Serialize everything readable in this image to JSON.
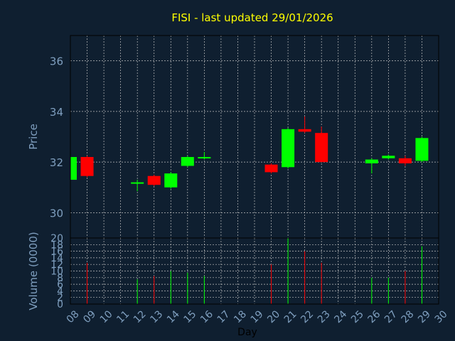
{
  "title": "FISI - last updated 29/01/2026",
  "colors": {
    "background": "#0f1f30",
    "title": "#ffff00",
    "axis_text": "#7f9fbf",
    "grid": "#bfbfbf",
    "frame": "#000000",
    "up": "#00ff00",
    "down": "#ff0000",
    "xlabel": "#000000"
  },
  "chart_data": [
    {
      "type": "candlestick",
      "title": "FISI - last updated 29/01/2026",
      "ylabel": "Price",
      "ylim": [
        29,
        37
      ],
      "yticks": [
        30,
        32,
        34,
        36
      ],
      "grid": true,
      "x_categories": [
        "08",
        "09",
        "10",
        "11",
        "12",
        "13",
        "14",
        "15",
        "16",
        "17",
        "18",
        "19",
        "20",
        "21",
        "22",
        "23",
        "24",
        "25",
        "26",
        "27",
        "28",
        "29",
        "30"
      ],
      "candles": [
        {
          "x": "08",
          "open": 31.3,
          "high": 32.25,
          "low": 31.25,
          "close": 32.2
        },
        {
          "x": "09",
          "open": 32.2,
          "high": 32.25,
          "low": 31.4,
          "close": 31.45
        },
        {
          "x": "12",
          "open": 31.15,
          "high": 31.3,
          "low": 30.85,
          "close": 31.2
        },
        {
          "x": "13",
          "open": 31.45,
          "high": 31.5,
          "low": 31.05,
          "close": 31.1
        },
        {
          "x": "14",
          "open": 31.0,
          "high": 31.6,
          "low": 30.95,
          "close": 31.55
        },
        {
          "x": "15",
          "open": 31.85,
          "high": 32.25,
          "low": 31.8,
          "close": 32.2
        },
        {
          "x": "16",
          "open": 32.15,
          "high": 32.4,
          "low": 32.1,
          "close": 32.2
        },
        {
          "x": "20",
          "open": 31.9,
          "high": 31.95,
          "low": 31.55,
          "close": 31.6
        },
        {
          "x": "21",
          "open": 31.8,
          "high": 33.35,
          "low": 31.75,
          "close": 33.3
        },
        {
          "x": "22",
          "open": 33.3,
          "high": 33.8,
          "low": 33.15,
          "close": 33.2
        },
        {
          "x": "23",
          "open": 33.15,
          "high": 33.4,
          "low": 32.0,
          "close": 32.0
        },
        {
          "x": "26",
          "open": 31.95,
          "high": 32.15,
          "low": 31.55,
          "close": 32.1
        },
        {
          "x": "27",
          "open": 32.15,
          "high": 32.3,
          "low": 32.1,
          "close": 32.25
        },
        {
          "x": "28",
          "open": 32.15,
          "high": 32.25,
          "low": 31.85,
          "close": 31.95
        },
        {
          "x": "29",
          "open": 32.05,
          "high": 33.0,
          "low": 32.0,
          "close": 32.95
        }
      ]
    },
    {
      "type": "bar",
      "ylabel": "Volume (0000)",
      "xlabel": "Day",
      "ylim": [
        0,
        20
      ],
      "yticks": [
        0,
        2,
        4,
        6,
        8,
        10,
        12,
        14,
        16,
        18,
        20
      ],
      "grid": true,
      "categories": [
        "09",
        "12",
        "13",
        "14",
        "15",
        "16",
        "20",
        "21",
        "22",
        "23",
        "26",
        "27",
        "28",
        "29"
      ],
      "values": [
        12.5,
        7.5,
        8.5,
        10,
        9.5,
        8.5,
        12,
        20,
        16,
        12.5,
        8,
        8,
        10,
        17.5
      ],
      "directions": [
        "down",
        "up",
        "down",
        "up",
        "up",
        "up",
        "down",
        "up",
        "down",
        "down",
        "up",
        "up",
        "down",
        "up"
      ]
    }
  ]
}
